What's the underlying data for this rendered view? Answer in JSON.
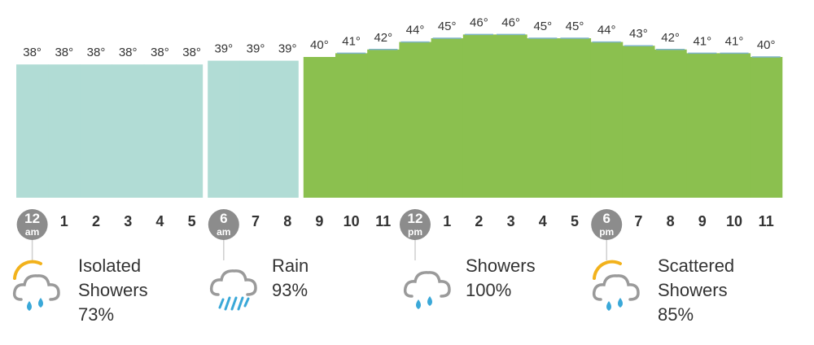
{
  "chart_data": {
    "type": "bar",
    "categories": [
      "12 am",
      "1",
      "2",
      "3",
      "4",
      "5",
      "6 am",
      "7",
      "8",
      "9",
      "10",
      "11",
      "12 pm",
      "1",
      "2",
      "3",
      "4",
      "5",
      "6 pm",
      "7",
      "8",
      "9",
      "10",
      "11"
    ],
    "values": [
      38,
      38,
      38,
      38,
      38,
      38,
      39,
      39,
      39,
      40,
      41,
      42,
      44,
      45,
      46,
      46,
      45,
      45,
      44,
      43,
      42,
      41,
      41,
      40
    ],
    "value_labels": [
      "38°",
      "38°",
      "38°",
      "38°",
      "38°",
      "38°",
      "39°",
      "39°",
      "39°",
      "40°",
      "41°",
      "42°",
      "44°",
      "45°",
      "46°",
      "46°",
      "45°",
      "45°",
      "44°",
      "43°",
      "42°",
      "41°",
      "41°",
      "40°"
    ],
    "hour_labels": [
      "",
      "1",
      "2",
      "3",
      "4",
      "5",
      "",
      "7",
      "8",
      "9",
      "10",
      "11",
      "",
      "1",
      "2",
      "3",
      "4",
      "5",
      "",
      "7",
      "8",
      "9",
      "10",
      "11"
    ],
    "markers": [
      {
        "index": 0,
        "top": "12",
        "bottom": "am"
      },
      {
        "index": 6,
        "top": "6",
        "bottom": "am"
      },
      {
        "index": 12,
        "top": "12",
        "bottom": "pm"
      },
      {
        "index": 18,
        "top": "6",
        "bottom": "pm"
      }
    ],
    "segments": [
      {
        "start": 0,
        "end": 5,
        "color": "#b1dcd5"
      },
      {
        "start": 6,
        "end": 8,
        "color": "#b1dcd5"
      },
      {
        "start": 9,
        "end": 23,
        "color": "#8bc04f"
      }
    ],
    "grid": false,
    "legend": "none"
  },
  "forecasts": [
    {
      "lines": [
        "Isolated",
        "Showers",
        "73%"
      ],
      "icon": "sun-cloud-drops-icon"
    },
    {
      "lines": [
        "Rain",
        "93%"
      ],
      "icon": "cloud-rain-icon"
    },
    {
      "lines": [
        "Showers",
        "100%"
      ],
      "icon": "cloud-drops-icon"
    },
    {
      "lines": [
        "Scattered",
        "Showers",
        "85%"
      ],
      "icon": "sun-cloud-drops-icon"
    }
  ],
  "colors": {
    "cool_bar": "#b1dcd5",
    "warm_bar": "#8bc04f",
    "warm_bar_top": "#7fb4c9",
    "marker_circle": "#8c8c8c",
    "drop": "#3aa8d8",
    "sun": "#f2b21c",
    "cloud": "#9a9a9a"
  }
}
